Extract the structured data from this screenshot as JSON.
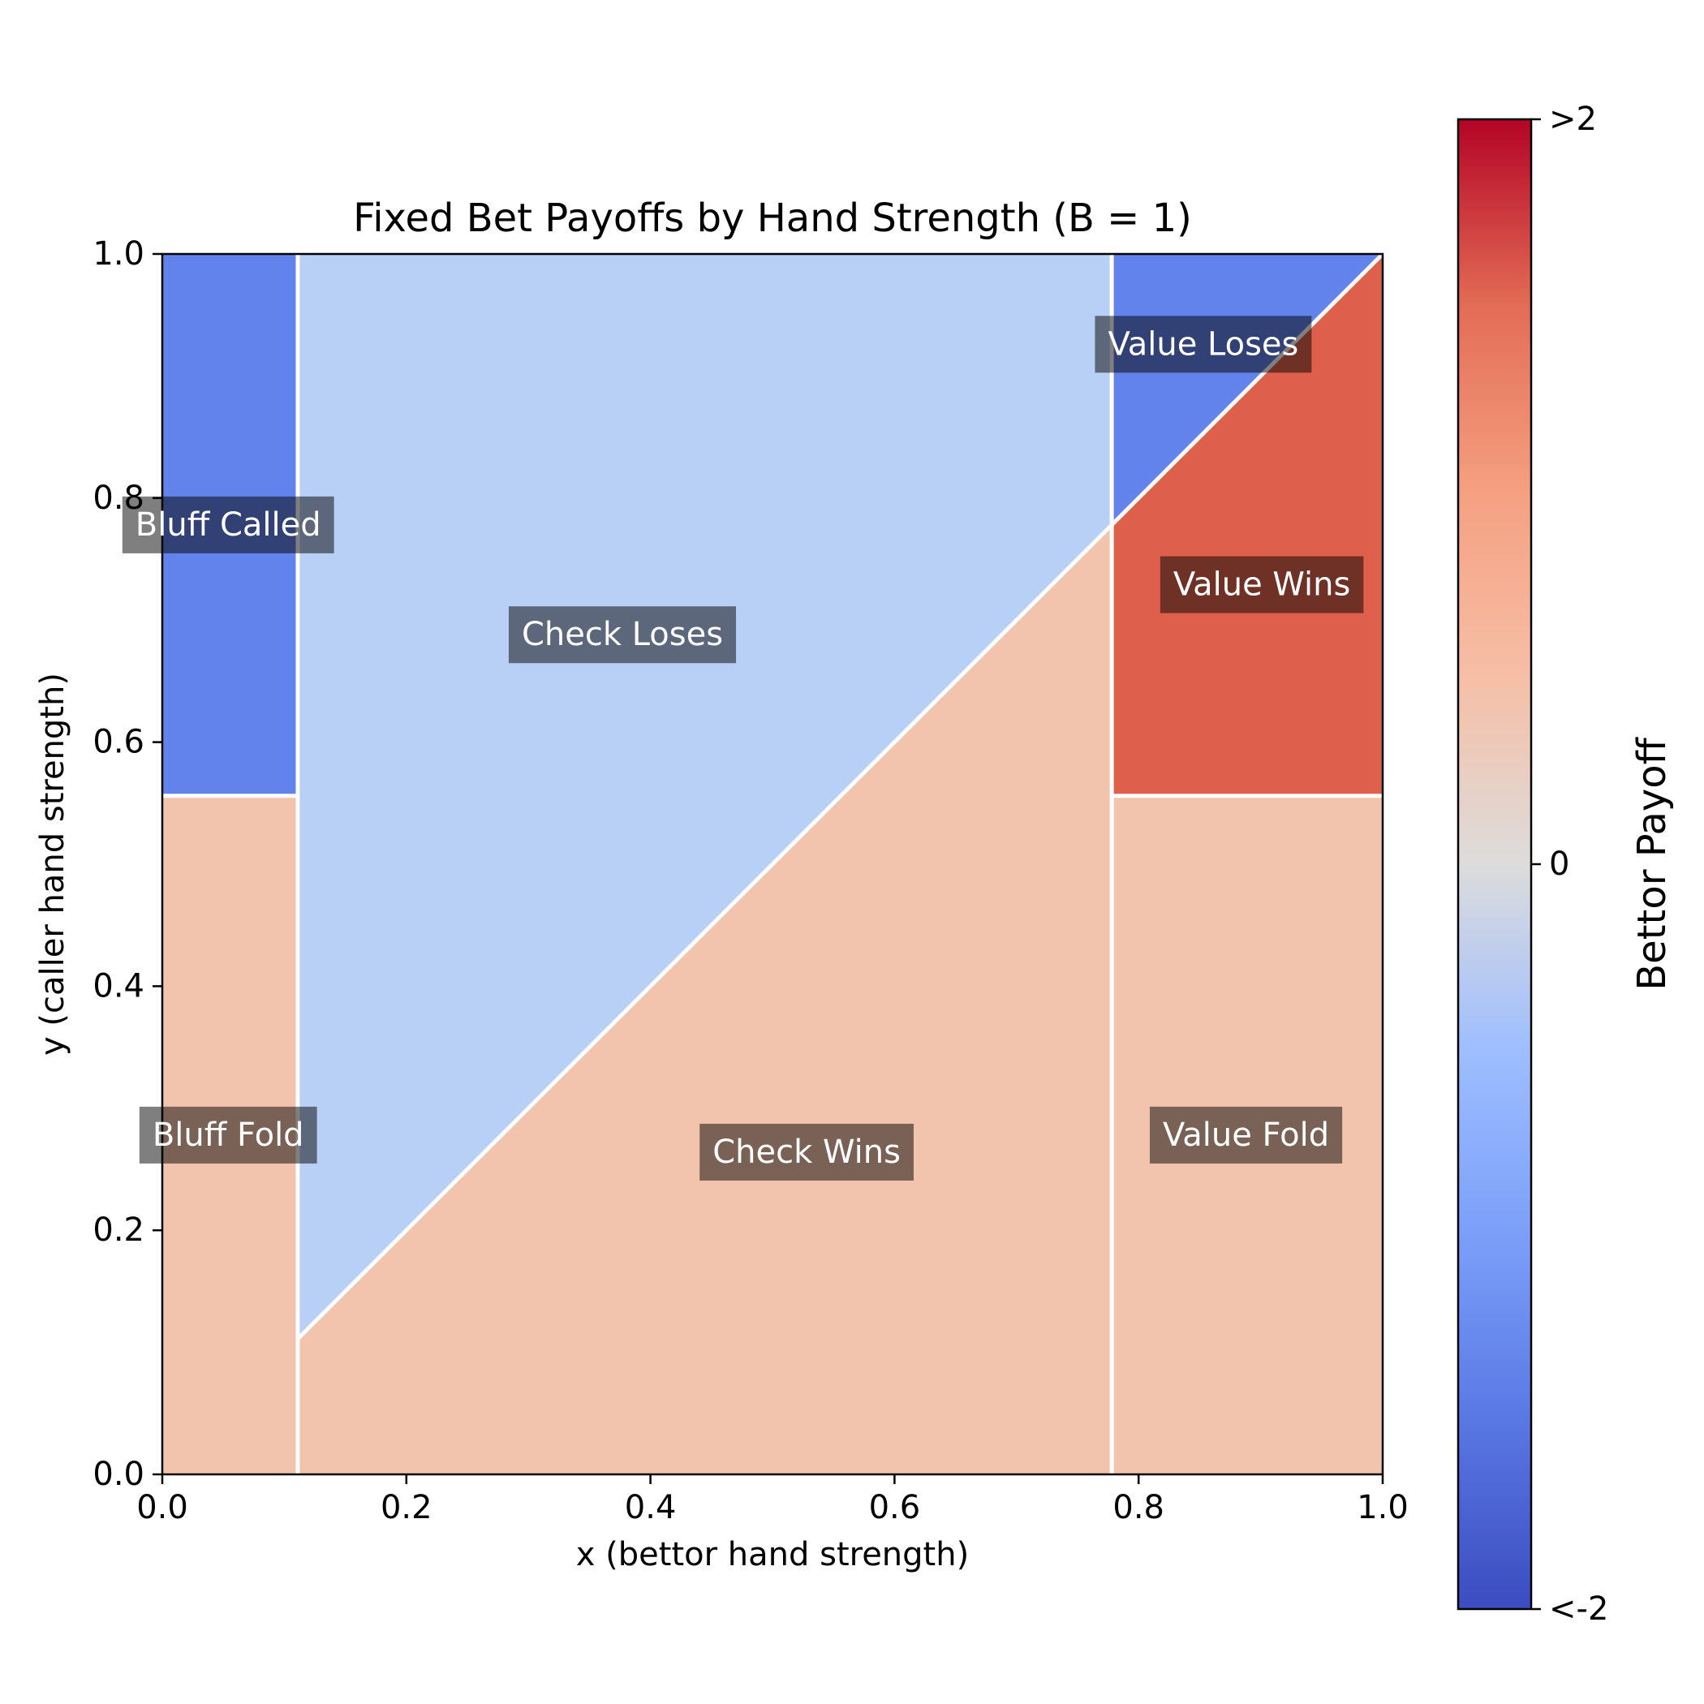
{
  "chart_data": {
    "type": "heatmap",
    "title": "Fixed Bet Payoffs by Hand Strength (B = 1)",
    "xlabel": "x (bettor hand strength)",
    "ylabel": "y (caller hand strength)",
    "xlim": [
      0,
      1
    ],
    "ylim": [
      0,
      1
    ],
    "xticks": [
      "0.0",
      "0.2",
      "0.4",
      "0.6",
      "0.8",
      "1.0"
    ],
    "yticks": [
      "0.0",
      "0.2",
      "0.4",
      "0.6",
      "0.8",
      "1.0"
    ],
    "thresholds": {
      "bluff_x": 0.111,
      "value_x": 0.778,
      "call_y": 0.556
    },
    "colorbar": {
      "label": "Bettor Payoff",
      "colormap": "coolwarm",
      "range": [
        -2,
        2
      ],
      "ticks": [
        {
          "value": 2,
          "label": ">2"
        },
        {
          "value": 0,
          "label": "0"
        },
        {
          "value": -2,
          "label": "<-2"
        }
      ]
    },
    "regions": [
      {
        "name": "Bluff Fold",
        "payoff": 1,
        "color": "#f2c3ad",
        "polygon": [
          [
            0,
            0
          ],
          [
            0.111,
            0
          ],
          [
            0.111,
            0.556
          ],
          [
            0,
            0.556
          ]
        ],
        "label_pos": [
          0.054,
          0.278
        ]
      },
      {
        "name": "Bluff Called",
        "payoff": -2,
        "color": "#6283eb",
        "polygon": [
          [
            0,
            0.556
          ],
          [
            0.111,
            0.556
          ],
          [
            0.111,
            1
          ],
          [
            0,
            1
          ]
        ],
        "label_pos": [
          0.054,
          0.778
        ]
      },
      {
        "name": "Check Wins",
        "payoff": 1,
        "color": "#f2c3ad",
        "polygon": [
          [
            0.111,
            0
          ],
          [
            0.778,
            0
          ],
          [
            0.778,
            0.778
          ],
          [
            0.111,
            0.111
          ]
        ],
        "label_pos": [
          0.528,
          0.264
        ]
      },
      {
        "name": "Check Loses",
        "payoff": -1,
        "color": "#b8cff6",
        "polygon": [
          [
            0.111,
            0.111
          ],
          [
            0.778,
            0.778
          ],
          [
            0.778,
            1
          ],
          [
            0.111,
            1
          ]
        ],
        "label_pos": [
          0.377,
          0.688
        ]
      },
      {
        "name": "Value Fold",
        "payoff": 1,
        "color": "#f2c3ad",
        "polygon": [
          [
            0.778,
            0
          ],
          [
            1,
            0
          ],
          [
            1,
            0.556
          ],
          [
            0.778,
            0.556
          ]
        ],
        "label_pos": [
          0.888,
          0.278
        ]
      },
      {
        "name": "Value Wins",
        "payoff": 2,
        "color": "#de604c",
        "polygon": [
          [
            0.778,
            0.556
          ],
          [
            1,
            0.556
          ],
          [
            1,
            1
          ],
          [
            0.778,
            0.778
          ]
        ],
        "label_pos": [
          0.901,
          0.729
        ]
      },
      {
        "name": "Value Loses",
        "payoff": -2,
        "color": "#6283eb",
        "polygon": [
          [
            0.778,
            0.778
          ],
          [
            1,
            1
          ],
          [
            0.778,
            1
          ]
        ],
        "label_pos": [
          0.853,
          0.926
        ]
      }
    ],
    "boundaries": [
      [
        [
          0.111,
          0
        ],
        [
          0.111,
          1
        ]
      ],
      [
        [
          0.778,
          0
        ],
        [
          0.778,
          1
        ]
      ],
      [
        [
          0,
          0.556
        ],
        [
          0.111,
          0.556
        ]
      ],
      [
        [
          0.778,
          0.556
        ],
        [
          1,
          0.556
        ]
      ],
      [
        [
          0.111,
          0.111
        ],
        [
          1,
          1
        ]
      ]
    ],
    "grid": false,
    "legend": "none"
  }
}
